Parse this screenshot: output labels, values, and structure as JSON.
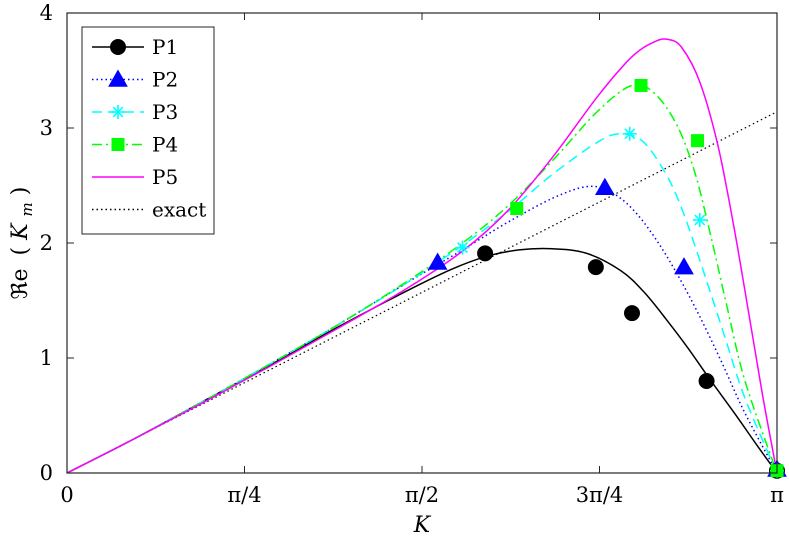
{
  "chart_data": {
    "type": "line",
    "xlabel": "K",
    "ylabel": "ℜe (K_m)",
    "ylabel_prefix": "ℜe",
    "ylabel_open": "(",
    "ylabel_var": "K",
    "ylabel_sub": "m",
    "ylabel_close": ")",
    "xlim": [
      0,
      3.14159
    ],
    "ylim": [
      0,
      4
    ],
    "x_ticks": [
      0,
      0.785398,
      1.570796,
      2.356194,
      3.141593
    ],
    "x_tick_labels": [
      "0",
      "π/4",
      "π/2",
      "3π/4",
      "π"
    ],
    "y_ticks": [
      0,
      1,
      2,
      3,
      4
    ],
    "y_tick_labels": [
      "0",
      "1",
      "2",
      "3",
      "4"
    ],
    "grid": false,
    "legend_position": "top-left",
    "series": [
      {
        "name": "P1",
        "color": "#000000",
        "dash": "solid",
        "marker": "circle",
        "x": [
          0,
          0.3,
          0.6,
          0.9,
          1.2,
          1.5,
          1.7,
          1.85,
          2.0,
          2.15,
          2.3,
          2.45,
          2.55,
          2.65,
          2.75,
          2.85,
          2.95,
          3.05,
          3.14159
        ],
        "y": [
          0,
          0.3,
          0.62,
          0.94,
          1.27,
          1.58,
          1.77,
          1.88,
          1.94,
          1.95,
          1.91,
          1.76,
          1.58,
          1.34,
          1.08,
          0.8,
          0.53,
          0.25,
          0
        ],
        "marker_x": [
          1.85,
          2.34,
          2.5,
          2.83,
          3.14159
        ],
        "marker_y": [
          1.91,
          1.79,
          1.39,
          0.8,
          0.02
        ]
      },
      {
        "name": "P2",
        "color": "#0000ff",
        "dash": "dotted",
        "marker": "triangle",
        "x": [
          0,
          0.3,
          0.6,
          0.9,
          1.2,
          1.5,
          1.75,
          1.95,
          2.15,
          2.3,
          2.4,
          2.5,
          2.6,
          2.7,
          2.8,
          2.9,
          3.0,
          3.14159
        ],
        "y": [
          0,
          0.3,
          0.62,
          0.95,
          1.29,
          1.65,
          1.94,
          2.18,
          2.39,
          2.49,
          2.45,
          2.3,
          2.05,
          1.73,
          1.36,
          0.95,
          0.52,
          0
        ],
        "marker_x": [
          1.64,
          2.38,
          2.73,
          3.14159
        ],
        "marker_y": [
          1.83,
          2.48,
          1.79,
          0.03
        ]
      },
      {
        "name": "P3",
        "color": "#00ffff",
        "dash": "dashed",
        "marker": "star",
        "x": [
          0,
          0.3,
          0.6,
          0.9,
          1.2,
          1.5,
          1.75,
          1.95,
          2.15,
          2.35,
          2.45,
          2.55,
          2.65,
          2.72,
          2.8,
          2.9,
          3.0,
          3.14159
        ],
        "y": [
          0,
          0.3,
          0.62,
          0.95,
          1.29,
          1.65,
          1.98,
          2.27,
          2.6,
          2.88,
          2.95,
          2.88,
          2.6,
          2.3,
          1.85,
          1.25,
          0.65,
          0
        ],
        "marker_x": [
          1.75,
          2.49,
          2.8,
          3.14159
        ],
        "marker_y": [
          1.96,
          2.95,
          2.2,
          0.02
        ]
      },
      {
        "name": "P4",
        "color": "#00ff00",
        "dash": "dashdot",
        "marker": "square",
        "x": [
          0,
          0.3,
          0.6,
          0.9,
          1.2,
          1.5,
          1.75,
          1.95,
          2.15,
          2.35,
          2.5,
          2.6,
          2.7,
          2.78,
          2.85,
          2.92,
          3.0,
          3.14159
        ],
        "y": [
          0,
          0.3,
          0.62,
          0.95,
          1.29,
          1.66,
          2.0,
          2.32,
          2.72,
          3.15,
          3.37,
          3.3,
          3.02,
          2.6,
          2.05,
          1.45,
          0.8,
          0
        ],
        "marker_x": [
          1.99,
          2.54,
          2.79,
          3.14159
        ],
        "marker_y": [
          2.3,
          3.37,
          2.89,
          0.02
        ]
      },
      {
        "name": "P5",
        "color": "#ff00ff",
        "dash": "solid",
        "marker": "none",
        "x": [
          0,
          0.3,
          0.6,
          0.9,
          1.2,
          1.5,
          1.75,
          1.95,
          2.15,
          2.35,
          2.5,
          2.6,
          2.66,
          2.72,
          2.8,
          2.88,
          2.95,
          3.02,
          3.08,
          3.14159
        ],
        "y": [
          0,
          0.3,
          0.61,
          0.93,
          1.26,
          1.6,
          1.93,
          2.28,
          2.75,
          3.28,
          3.62,
          3.75,
          3.77,
          3.7,
          3.4,
          2.85,
          2.15,
          1.35,
          0.65,
          0
        ],
        "marker_x": [],
        "marker_y": []
      },
      {
        "name": "exact",
        "color": "#000000",
        "dash": "densedot",
        "marker": "none",
        "x": [
          0,
          3.14159
        ],
        "y": [
          0,
          3.14159
        ],
        "marker_x": [],
        "marker_y": []
      }
    ]
  }
}
